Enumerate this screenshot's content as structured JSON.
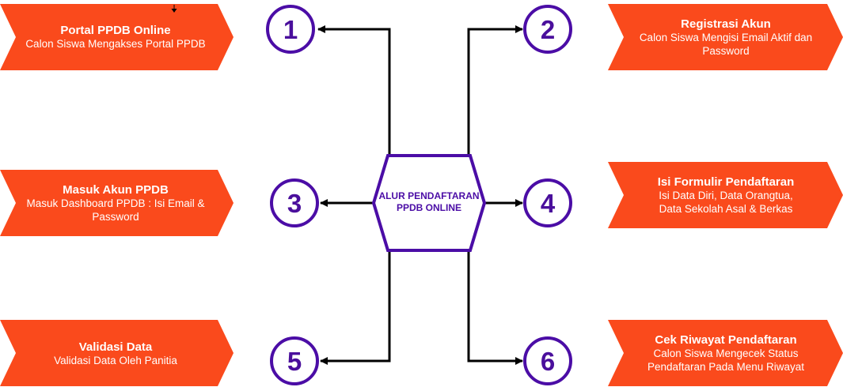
{
  "center": {
    "line1": "ALUR PENDAFTARAN",
    "line2": "PPDB ONLINE"
  },
  "colors": {
    "banner": "#fa4a1c",
    "accent": "#4b0da6",
    "connector": "#000000"
  },
  "steps": [
    {
      "number": "1",
      "title": "Portal PPDB Online",
      "lines": [
        "Calon Siswa Mengakses Portal PPDB"
      ]
    },
    {
      "number": "2",
      "title": "Registrasi Akun",
      "lines": [
        "Calon Siswa Mengisi Email Aktif dan",
        "Password"
      ]
    },
    {
      "number": "3",
      "title": "Masuk Akun PPDB",
      "lines": [
        "Masuk Dashboard PPDB : Isi Email &",
        "Password"
      ]
    },
    {
      "number": "4",
      "title": "Isi Formulir Pendaftaran",
      "lines": [
        "Isi Data Diri, Data Orangtua,",
        "Data Sekolah Asal & Berkas"
      ]
    },
    {
      "number": "5",
      "title": "Validasi Data",
      "lines": [
        "Validasi Data Oleh Panitia"
      ]
    },
    {
      "number": "6",
      "title": "Cek Riwayat Pendaftaran",
      "lines": [
        "Calon Siswa Mengecek Status",
        "Pendaftaran Pada Menu Riwayat"
      ]
    }
  ]
}
